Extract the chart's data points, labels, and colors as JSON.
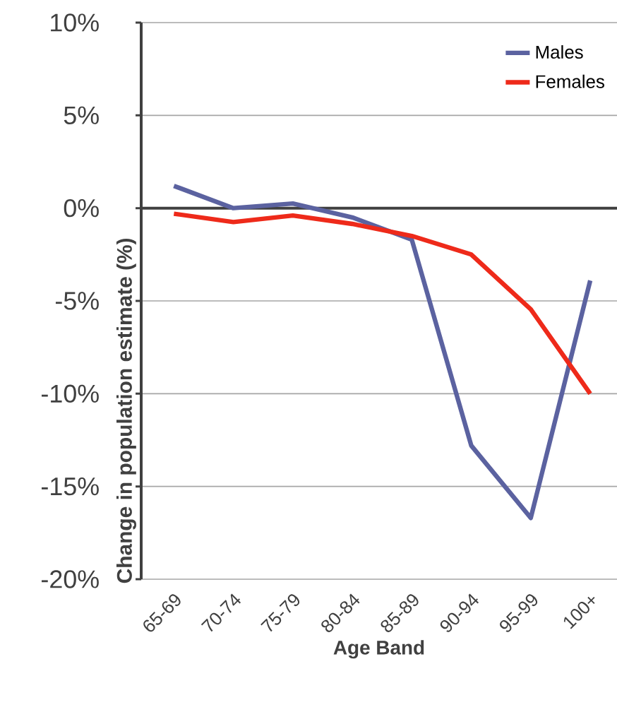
{
  "chart_data": {
    "type": "line",
    "xlabel": "Age Band",
    "ylabel": "Change in population estimate (%)",
    "categories": [
      "65-69",
      "70-74",
      "75-79",
      "80-84",
      "85-89",
      "90-94",
      "95-99",
      "100+"
    ],
    "series": [
      {
        "name": "Males",
        "color": "#5b62a0",
        "values": [
          1.2,
          0.0,
          0.25,
          -0.5,
          -1.7,
          -12.8,
          -16.7,
          -3.9
        ]
      },
      {
        "name": "Females",
        "color": "#ee2a1a",
        "values": [
          -0.3,
          -0.75,
          -0.4,
          -0.85,
          -1.5,
          -2.5,
          -5.45,
          -10.0
        ]
      }
    ],
    "ylim": [
      -20,
      10
    ],
    "yticks": [
      {
        "value": -20,
        "label": "-20%"
      },
      {
        "value": -15,
        "label": "-15%"
      },
      {
        "value": -10,
        "label": "-10%"
      },
      {
        "value": -5,
        "label": "-5%"
      },
      {
        "value": 0,
        "label": "0%"
      },
      {
        "value": 5,
        "label": "5%"
      },
      {
        "value": 10,
        "label": "10%"
      }
    ],
    "grid": "y",
    "legend": "top right",
    "marker": "none",
    "line_style": "solid"
  }
}
